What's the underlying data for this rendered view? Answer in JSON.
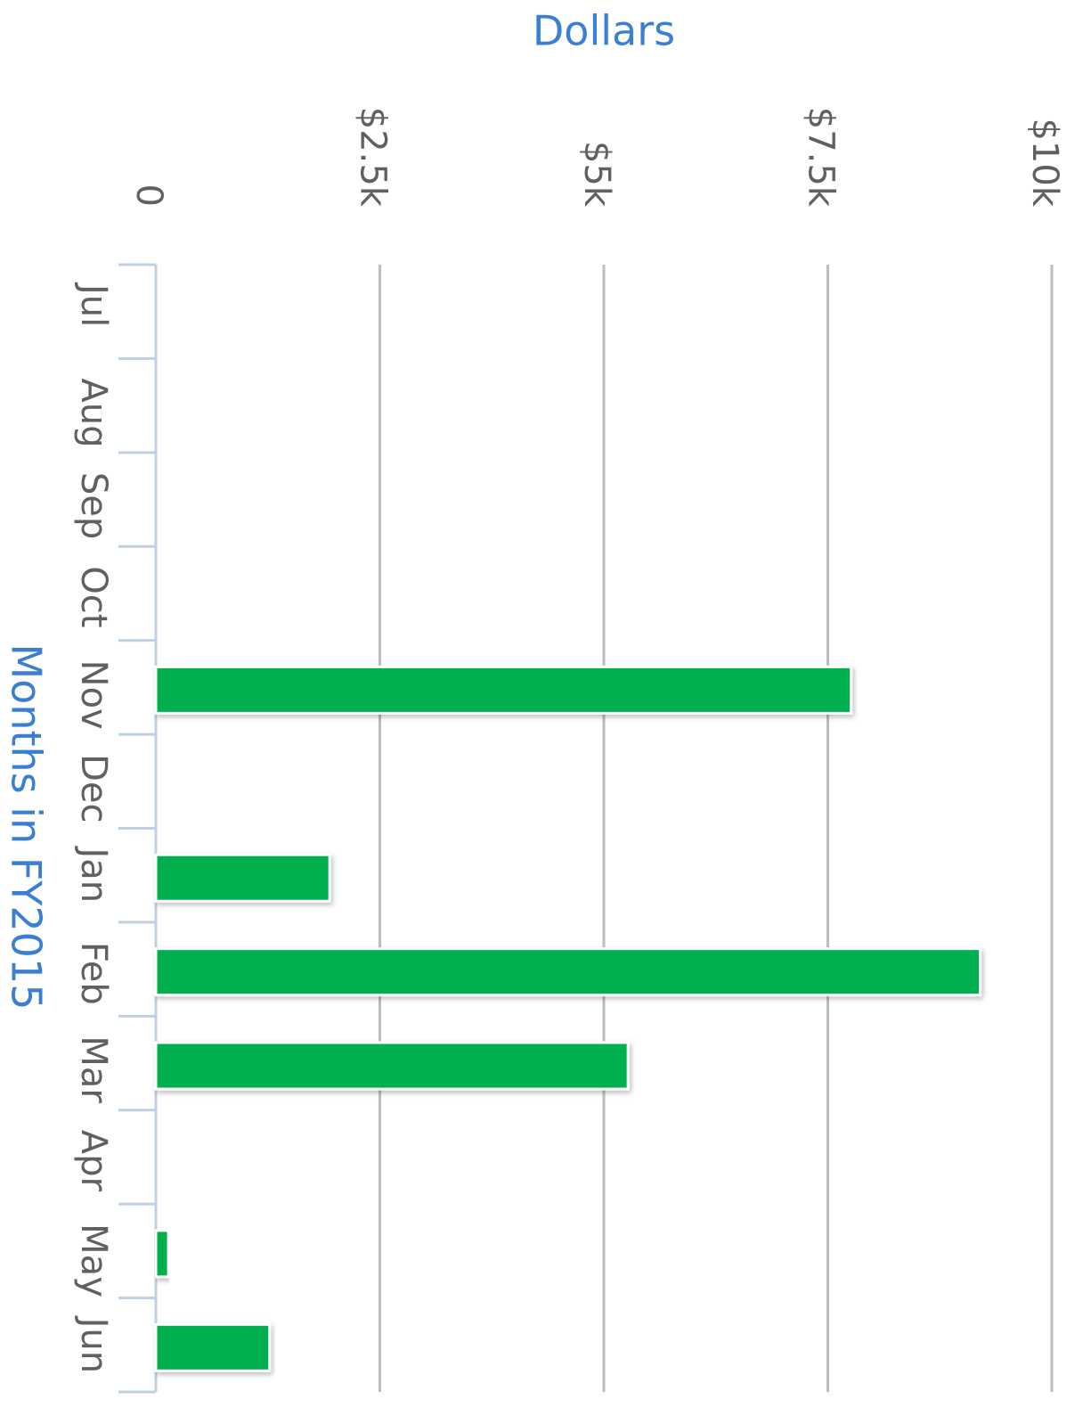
{
  "chart_data": {
    "type": "bar",
    "value_axis_label": "Dollars",
    "category_axis_label": "Months in FY2015",
    "categories": [
      "Jul",
      "Aug",
      "Sep",
      "Oct",
      "Nov",
      "Dec",
      "Jan",
      "Feb",
      "Mar",
      "Apr",
      "May",
      "Jun"
    ],
    "values": [
      null,
      null,
      null,
      null,
      7760,
      null,
      1940,
      9200,
      5270,
      null,
      140,
      1270
    ],
    "color": "#00b04f",
    "ylim": [
      0,
      10000
    ],
    "yticks": [
      0,
      {
        "value": 2500,
        "label": "$2.5k"
      },
      {
        "value": 5000,
        "label": "$5k"
      },
      {
        "value": 7500,
        "label": "$7.5k"
      },
      {
        "value": 10000,
        "label": "$10k"
      }
    ],
    "grid": true
  }
}
